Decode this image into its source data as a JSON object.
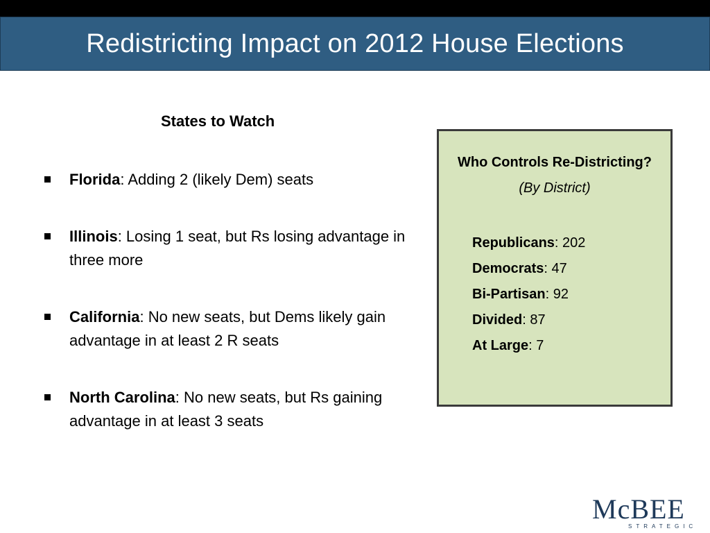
{
  "header": {
    "title": "Redistricting Impact on 2012 House Elections"
  },
  "left": {
    "subtitle": "States to Watch",
    "bullets": [
      {
        "state": "Florida",
        "text": ": Adding 2 (likely Dem) seats"
      },
      {
        "state": "Illinois",
        "text": ": Losing 1 seat, but Rs losing advantage in three more"
      },
      {
        "state": "California",
        "text": ": No new seats, but Dems likely gain advantage in at least 2 R seats"
      },
      {
        "state": "North Carolina",
        "text": ": No new seats, but Rs gaining advantage in at least 3 seats"
      }
    ]
  },
  "control_box": {
    "heading": "Who Controls Re-Districting?",
    "subheading": "(By District)",
    "counts": [
      {
        "label": "Republicans",
        "value": ": 202"
      },
      {
        "label": "Democrats",
        "value": ": 47"
      },
      {
        "label": "Bi-Partisan",
        "value": ": 92"
      },
      {
        "label": "Divided",
        "value": ": 87"
      },
      {
        "label": "At Large",
        "value": ": 7"
      }
    ]
  },
  "logo": {
    "main": "McBEE",
    "sub": "STRATEGIC"
  },
  "colors": {
    "banner": "#2f5d82",
    "box_fill": "#d7e4bd",
    "logo": "#1f3a5a"
  }
}
